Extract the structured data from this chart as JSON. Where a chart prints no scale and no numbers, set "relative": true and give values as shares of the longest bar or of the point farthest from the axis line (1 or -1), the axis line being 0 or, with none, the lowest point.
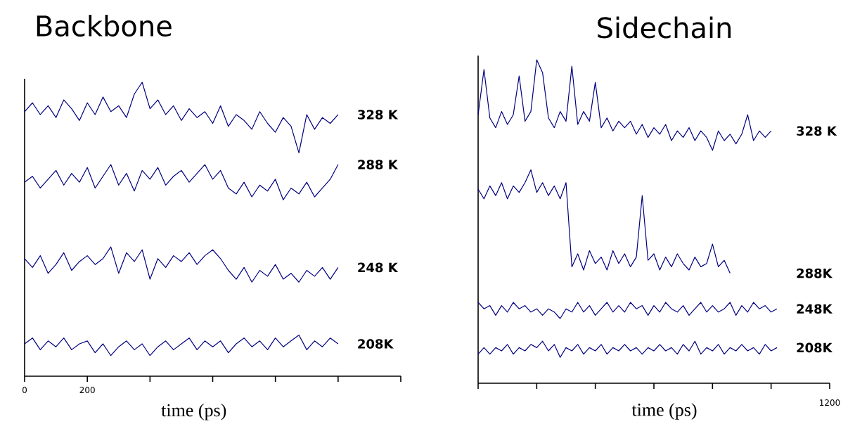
{
  "chart_data": [
    {
      "type": "line",
      "title": "Backbone",
      "xlabel": "time (ps)",
      "relative": true,
      "marker": "none",
      "xlim": [
        0,
        1200
      ],
      "xticks": [
        0,
        200,
        {
          "value": 400,
          "label": null
        },
        {
          "value": 600,
          "label": null
        },
        {
          "value": 800,
          "label": null
        },
        {
          "value": 1000,
          "label": null
        },
        {
          "value": 1200,
          "label": null
        }
      ],
      "x": [
        0,
        25,
        50,
        75,
        100,
        125,
        150,
        175,
        200,
        225,
        250,
        275,
        300,
        325,
        350,
        375,
        400,
        425,
        450,
        475,
        500,
        525,
        550,
        575,
        600,
        625,
        650,
        675,
        700,
        725,
        750,
        775,
        800,
        825,
        850,
        875,
        900,
        925,
        950,
        975,
        1000
      ],
      "series": [
        {
          "name": "328 K",
          "color": "#000080",
          "values": [
            0.9,
            0.93,
            0.89,
            0.92,
            0.88,
            0.94,
            0.91,
            0.87,
            0.93,
            0.89,
            0.95,
            0.9,
            0.92,
            0.88,
            0.96,
            1.0,
            0.91,
            0.94,
            0.89,
            0.92,
            0.87,
            0.91,
            0.88,
            0.9,
            0.86,
            0.92,
            0.85,
            0.89,
            0.87,
            0.84,
            0.9,
            0.86,
            0.83,
            0.88,
            0.85,
            0.76,
            0.89,
            0.84,
            0.88,
            0.86,
            0.89
          ]
        },
        {
          "name": "288 K",
          "color": "#000080",
          "values": [
            0.66,
            0.68,
            0.64,
            0.67,
            0.7,
            0.65,
            0.69,
            0.66,
            0.71,
            0.64,
            0.68,
            0.72,
            0.65,
            0.69,
            0.63,
            0.7,
            0.67,
            0.71,
            0.65,
            0.68,
            0.7,
            0.66,
            0.69,
            0.72,
            0.67,
            0.7,
            0.64,
            0.62,
            0.66,
            0.61,
            0.65,
            0.63,
            0.67,
            0.6,
            0.64,
            0.62,
            0.66,
            0.61,
            0.64,
            0.67,
            0.72
          ]
        },
        {
          "name": "248 K",
          "color": "#000080",
          "values": [
            0.4,
            0.37,
            0.41,
            0.35,
            0.38,
            0.42,
            0.36,
            0.39,
            0.41,
            0.38,
            0.4,
            0.44,
            0.35,
            0.42,
            0.39,
            0.43,
            0.33,
            0.4,
            0.37,
            0.41,
            0.39,
            0.42,
            0.38,
            0.41,
            0.43,
            0.4,
            0.36,
            0.33,
            0.37,
            0.32,
            0.36,
            0.34,
            0.38,
            0.33,
            0.35,
            0.32,
            0.36,
            0.34,
            0.37,
            0.33,
            0.37
          ]
        },
        {
          "name": "208K",
          "color": "#000080",
          "values": [
            0.11,
            0.13,
            0.09,
            0.12,
            0.1,
            0.13,
            0.09,
            0.11,
            0.12,
            0.08,
            0.11,
            0.07,
            0.1,
            0.12,
            0.09,
            0.11,
            0.07,
            0.1,
            0.12,
            0.09,
            0.11,
            0.13,
            0.09,
            0.12,
            0.1,
            0.12,
            0.08,
            0.11,
            0.13,
            0.1,
            0.12,
            0.09,
            0.13,
            0.1,
            0.12,
            0.14,
            0.09,
            0.12,
            0.1,
            0.13,
            0.11
          ]
        }
      ]
    },
    {
      "type": "line",
      "title": "Sidechain",
      "xlabel": "time (ps)",
      "relative": true,
      "marker": "none",
      "annotations": [
        "1200"
      ],
      "categories": [
        null,
        null,
        null,
        null,
        null,
        null,
        null,
        null,
        null,
        null,
        null,
        null,
        null,
        null,
        null,
        null,
        null,
        null,
        null,
        null,
        null,
        null,
        null,
        null,
        null,
        null,
        null,
        null,
        null,
        null,
        null,
        null,
        null,
        null,
        null,
        null,
        null,
        null,
        null,
        null,
        null,
        null,
        null,
        null,
        null,
        null,
        null,
        null,
        null,
        null,
        null,
        null,
        null,
        null,
        null,
        null,
        null,
        null,
        null,
        null,
        null
      ],
      "series": [
        {
          "name": "328 K",
          "color": "#000080",
          "values": [
            0.83,
            0.97,
            0.82,
            0.79,
            0.84,
            0.8,
            0.83,
            0.95,
            0.81,
            0.84,
            1.0,
            0.96,
            0.82,
            0.79,
            0.84,
            0.81,
            0.98,
            0.8,
            0.84,
            0.81,
            0.93,
            0.79,
            0.82,
            0.78,
            0.81,
            0.79,
            0.81,
            0.77,
            0.8,
            0.76,
            0.79,
            0.77,
            0.8,
            0.75,
            0.78,
            0.76,
            0.79,
            0.75,
            0.78,
            0.76,
            0.72,
            0.78,
            0.75,
            0.77,
            0.74,
            0.77,
            0.83,
            0.75,
            0.78,
            0.76,
            0.78,
            null,
            null,
            null,
            null,
            null,
            null,
            null,
            null,
            null,
            null
          ]
        },
        {
          "name": "288K",
          "color": "#000080",
          "values": [
            0.6,
            0.57,
            0.61,
            0.58,
            0.62,
            0.57,
            0.61,
            0.59,
            0.62,
            0.66,
            0.59,
            0.62,
            0.58,
            0.61,
            0.57,
            0.62,
            0.36,
            0.4,
            0.35,
            0.41,
            0.37,
            0.39,
            0.35,
            0.41,
            0.37,
            0.4,
            0.36,
            0.39,
            0.58,
            0.38,
            0.4,
            0.35,
            0.39,
            0.36,
            0.4,
            0.37,
            0.35,
            0.39,
            0.36,
            0.37,
            0.43,
            0.36,
            0.38,
            0.34,
            null,
            null,
            null,
            null,
            null,
            null,
            null,
            null,
            null,
            null,
            null,
            null,
            null,
            null,
            null,
            null,
            null
          ]
        },
        {
          "name": "248K",
          "color": "#000080",
          "values": [
            0.25,
            0.23,
            0.24,
            0.21,
            0.24,
            0.22,
            0.25,
            0.23,
            0.24,
            0.22,
            0.23,
            0.21,
            0.23,
            0.22,
            0.2,
            0.23,
            0.22,
            0.25,
            0.22,
            0.24,
            0.21,
            0.23,
            0.25,
            0.22,
            0.24,
            0.22,
            0.25,
            0.23,
            0.24,
            0.21,
            0.24,
            0.22,
            0.25,
            0.23,
            0.22,
            0.24,
            0.21,
            0.23,
            0.25,
            0.22,
            0.24,
            0.22,
            0.23,
            0.25,
            0.21,
            0.24,
            0.22,
            0.25,
            0.23,
            0.24,
            0.22,
            0.23,
            null,
            null,
            null,
            null,
            null,
            null,
            null,
            null,
            null
          ]
        },
        {
          "name": "208K",
          "color": "#000080",
          "values": [
            0.09,
            0.11,
            0.09,
            0.11,
            0.1,
            0.12,
            0.09,
            0.11,
            0.1,
            0.12,
            0.11,
            0.13,
            0.1,
            0.12,
            0.08,
            0.11,
            0.1,
            0.12,
            0.09,
            0.11,
            0.1,
            0.12,
            0.09,
            0.11,
            0.1,
            0.12,
            0.1,
            0.11,
            0.09,
            0.11,
            0.1,
            0.12,
            0.1,
            0.11,
            0.09,
            0.12,
            0.1,
            0.13,
            0.09,
            0.11,
            0.1,
            0.12,
            0.09,
            0.11,
            0.1,
            0.12,
            0.1,
            0.11,
            0.09,
            0.12,
            0.1,
            0.11,
            null,
            null,
            null,
            null,
            null,
            null,
            null,
            null,
            null
          ]
        }
      ]
    }
  ]
}
